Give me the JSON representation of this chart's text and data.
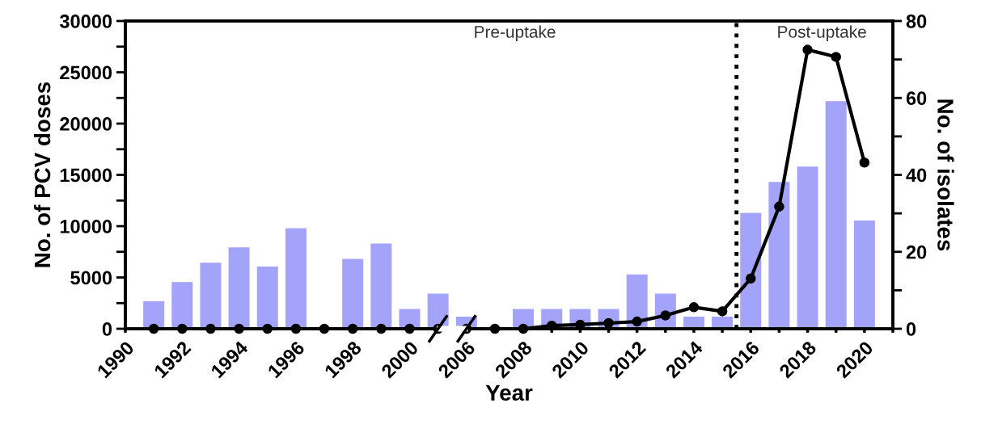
{
  "chart_data": {
    "type": "bar",
    "xlabel": "Year",
    "ylabel": "No. of PCV doses",
    "y2label": "No. of isolates",
    "categories": [
      "1990",
      null,
      "1992",
      null,
      "1994",
      null,
      "1996",
      null,
      "1998",
      null,
      "2000",
      null,
      "2006",
      null,
      "2008",
      null,
      "2010",
      null,
      "2012",
      null,
      "2014",
      null,
      "2016",
      null,
      "2018",
      null,
      "2020",
      null
    ],
    "series": [
      {
        "axis": "y2",
        "color": "#a3a3fa",
        "values": [
          null,
          7,
          12,
          17,
          21,
          16,
          26,
          0,
          18,
          22,
          5,
          9,
          3,
          0,
          5,
          5,
          5,
          5,
          14,
          9,
          3,
          3,
          30,
          38,
          42,
          59,
          28,
          null
        ]
      },
      {
        "type": "line",
        "color": "#000000",
        "values": [
          null,
          0,
          0,
          0,
          0,
          0,
          0,
          0,
          0,
          0,
          0,
          0,
          0,
          0,
          0,
          300,
          400,
          550,
          700,
          1300,
          2100,
          1700,
          4900,
          11900,
          27200,
          26500,
          16200,
          null
        ]
      }
    ],
    "marker": "circle",
    "line_style": "solid",
    "ylim": [
      0,
      30000
    ],
    "yticks": [
      0,
      {
        "value": 2500,
        "label": null
      },
      5000,
      {
        "value": 7500,
        "label": null
      },
      10000,
      {
        "value": 12500,
        "label": null
      },
      15000,
      {
        "value": 17500,
        "label": null
      },
      20000,
      {
        "value": 22500,
        "label": null
      },
      25000,
      {
        "value": 27500,
        "label": null
      },
      30000
    ],
    "y2lim": [
      0,
      80
    ],
    "y2ticks": [
      0,
      {
        "value": 10,
        "label": null
      },
      20,
      {
        "value": 30,
        "label": null
      },
      40,
      {
        "value": 50,
        "label": null
      },
      60,
      {
        "value": 70,
        "label": null
      },
      80
    ],
    "annotations": [
      "Pre-uptake",
      "Post-uptake"
    ],
    "grid": false
  }
}
